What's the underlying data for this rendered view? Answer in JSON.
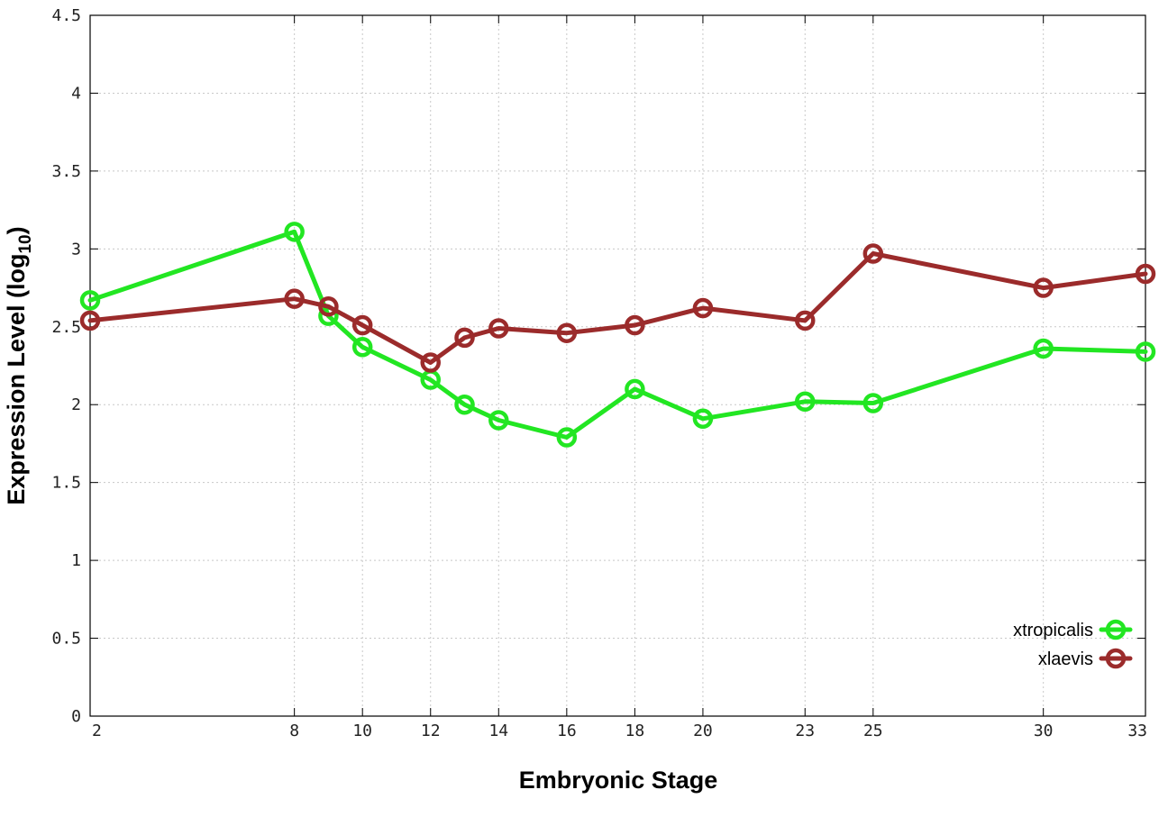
{
  "chart_data": {
    "type": "line",
    "xlabel": "Embryonic Stage",
    "ylabel": "Expression Level (log",
    "ylabel_sub": "10",
    "ylabel_end": ")",
    "ylim": [
      0,
      4.5
    ],
    "xlim": [
      2,
      33
    ],
    "y_ticks": [
      "0",
      "0.5",
      "1",
      "1.5",
      "2",
      "2.5",
      "3",
      "3.5",
      "4",
      "4.5"
    ],
    "x_ticks": [
      "2",
      "8",
      "10",
      "12",
      "14",
      "16",
      "18",
      "20",
      "23",
      "25",
      "30",
      "33"
    ],
    "grid": true,
    "legend_position": "bottom-right",
    "x": [
      2,
      8,
      9,
      10,
      12,
      13,
      14,
      16,
      18,
      20,
      23,
      25,
      30,
      33
    ],
    "series": [
      {
        "name": "xtropicalis",
        "color": "#22e622",
        "values": [
          2.67,
          3.11,
          2.57,
          2.37,
          2.16,
          2.0,
          1.9,
          1.79,
          2.1,
          1.91,
          2.02,
          2.01,
          2.36,
          2.34
        ]
      },
      {
        "name": "xlaevis",
        "color": "#9b2b2b",
        "values": [
          2.54,
          2.68,
          2.63,
          2.51,
          2.27,
          2.43,
          2.49,
          2.46,
          2.51,
          2.62,
          2.54,
          2.97,
          2.75,
          2.84
        ]
      }
    ]
  }
}
